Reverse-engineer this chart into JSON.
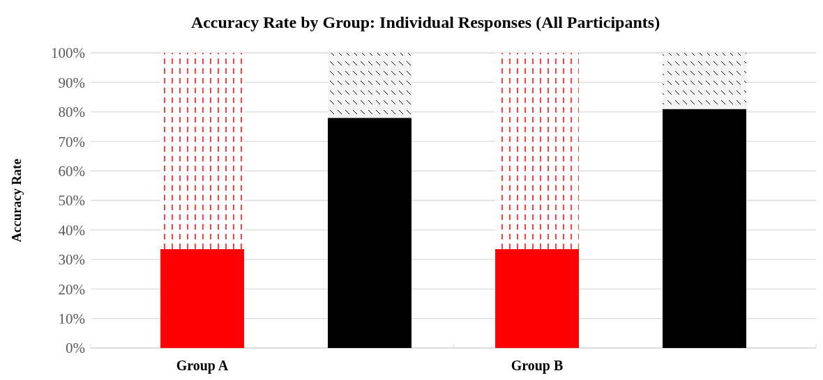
{
  "chart_data": {
    "type": "bar",
    "title": "Accuracy Rate by Group: Individual Responses (All Participants)",
    "ylabel": "Accuracy Rate",
    "categories": [
      "Group A",
      null,
      "Group B",
      null
    ],
    "stacked": true,
    "series": [
      {
        "colors": [
          "#ff0000",
          "#000000",
          "#ff0000",
          "#000000"
        ],
        "values": [
          33.5,
          78,
          33.5,
          81
        ]
      },
      {
        "colors": [
          "#ffffff",
          "#f4f4f4",
          "#ffffff",
          "#f4f4f4"
        ],
        "values": [
          66.5,
          22,
          66.5,
          19
        ]
      }
    ],
    "ylim": [
      0,
      100
    ],
    "yticks": [
      {
        "value": 0,
        "label": "0%"
      },
      {
        "value": 10,
        "label": "10%"
      },
      {
        "value": 20,
        "label": "20%"
      },
      {
        "value": 30,
        "label": "30%"
      },
      {
        "value": 40,
        "label": "40%"
      },
      {
        "value": 50,
        "label": "50%"
      },
      {
        "value": 60,
        "label": "60%"
      },
      {
        "value": 70,
        "label": "70%"
      },
      {
        "value": 80,
        "label": "80%"
      },
      {
        "value": 90,
        "label": "90%"
      },
      {
        "value": 100,
        "label": "100%"
      }
    ],
    "grid": "y"
  }
}
